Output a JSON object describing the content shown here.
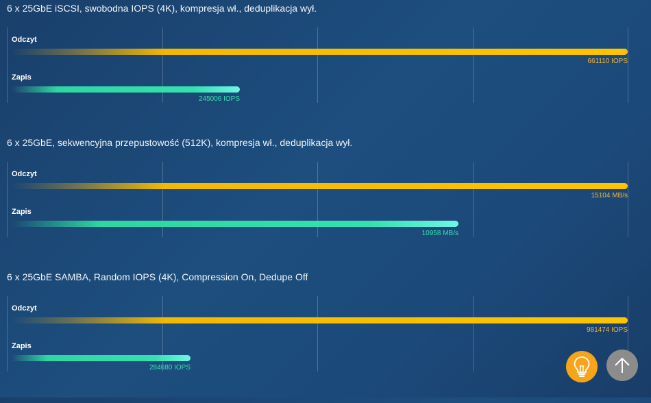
{
  "chart_data": [
    {
      "type": "bar",
      "title": "6 x 25GbE iSCSI, swobodna IOPS (4K), kompresja wł., deduplikacja wył.",
      "categories": [
        "Odczyt",
        "Zapis"
      ],
      "values": [
        661110,
        245006
      ],
      "value_labels": [
        "661110 IOPS",
        "245006 IOPS"
      ],
      "unit": "IOPS",
      "orientation": "horizontal",
      "grid": true
    },
    {
      "type": "bar",
      "title": "6 x 25GbE, sekwencyjna przepustowość (512K), kompresja wł., deduplikacja wył.",
      "categories": [
        "Odczyt",
        "Zapis"
      ],
      "values": [
        15104,
        10958
      ],
      "value_labels": [
        "15104 MB/s",
        "10958 MB/s"
      ],
      "unit": "MB/s",
      "orientation": "horizontal",
      "grid": true
    },
    {
      "type": "bar",
      "title": "6 x 25GbE SAMBA, Random IOPS (4K), Compression On, Dedupe Off",
      "categories": [
        "Odczyt",
        "Zapis"
      ],
      "values": [
        981474,
        284680
      ],
      "value_labels": [
        "981474 IOPS",
        "284680 IOPS"
      ],
      "unit": "IOPS",
      "orientation": "horizontal",
      "grid": true
    }
  ],
  "colors": {
    "read": "#ffc400",
    "write": "#35e0b0",
    "read_label": "#f7b731",
    "write_label": "#34e3ae",
    "bulb_button": "#f6a41a",
    "up_button": "#8c8c8c"
  },
  "buttons": {
    "tips": {
      "icon": "lightbulb-icon"
    },
    "scroll_top": {
      "icon": "arrow-up-icon"
    }
  }
}
